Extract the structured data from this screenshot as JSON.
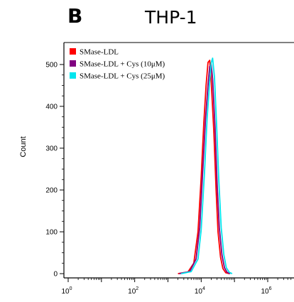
{
  "panel": {
    "letter": "B",
    "title": "THP-1"
  },
  "chart_data": {
    "type": "line",
    "title": "THP-1",
    "xlabel": "",
    "ylabel": "Count",
    "xscale": "log",
    "xlim": [
      1,
      1000000
    ],
    "ylim": [
      0,
      520
    ],
    "yticks": [
      0,
      100,
      200,
      300,
      400,
      500
    ],
    "xticks": [
      {
        "value": 1,
        "base": "10",
        "exp": "0"
      },
      {
        "value": 100,
        "base": "10",
        "exp": "2"
      },
      {
        "value": 10000,
        "base": "10",
        "exp": "4"
      },
      {
        "value": 1000000,
        "base": "10",
        "exp": "6"
      }
    ],
    "legend_position": "top-left",
    "series": [
      {
        "name": "SMase-LDL",
        "color": "#ff0000",
        "points": [
          [
            2000,
            0
          ],
          [
            4000,
            4
          ],
          [
            6000,
            25
          ],
          [
            8000,
            100
          ],
          [
            10000,
            230
          ],
          [
            12000,
            360
          ],
          [
            14000,
            450
          ],
          [
            16000,
            505
          ],
          [
            18000,
            510
          ],
          [
            20000,
            460
          ],
          [
            24000,
            340
          ],
          [
            28000,
            200
          ],
          [
            32000,
            100
          ],
          [
            38000,
            40
          ],
          [
            45000,
            12
          ],
          [
            55000,
            2
          ],
          [
            70000,
            0
          ]
        ]
      },
      {
        "name": "SMase-LDL + Cys (10μM)",
        "color": "#800080",
        "points": [
          [
            2200,
            0
          ],
          [
            4500,
            5
          ],
          [
            7000,
            35
          ],
          [
            9000,
            110
          ],
          [
            11000,
            240
          ],
          [
            13500,
            370
          ],
          [
            16000,
            450
          ],
          [
            18000,
            495
          ],
          [
            20000,
            500
          ],
          [
            22000,
            465
          ],
          [
            26000,
            350
          ],
          [
            30000,
            215
          ],
          [
            35000,
            110
          ],
          [
            42000,
            45
          ],
          [
            50000,
            14
          ],
          [
            60000,
            3
          ],
          [
            75000,
            0
          ]
        ]
      },
      {
        "name": "SMase-LDL + Cys (25μM)",
        "color": "#00e5ee",
        "points": [
          [
            2500,
            0
          ],
          [
            5000,
            5
          ],
          [
            8000,
            35
          ],
          [
            10000,
            105
          ],
          [
            12500,
            240
          ],
          [
            15000,
            370
          ],
          [
            18000,
            460
          ],
          [
            20000,
            505
          ],
          [
            22000,
            515
          ],
          [
            25000,
            470
          ],
          [
            29000,
            355
          ],
          [
            34000,
            220
          ],
          [
            40000,
            110
          ],
          [
            48000,
            45
          ],
          [
            57000,
            14
          ],
          [
            70000,
            3
          ],
          [
            85000,
            0
          ]
        ]
      }
    ]
  }
}
